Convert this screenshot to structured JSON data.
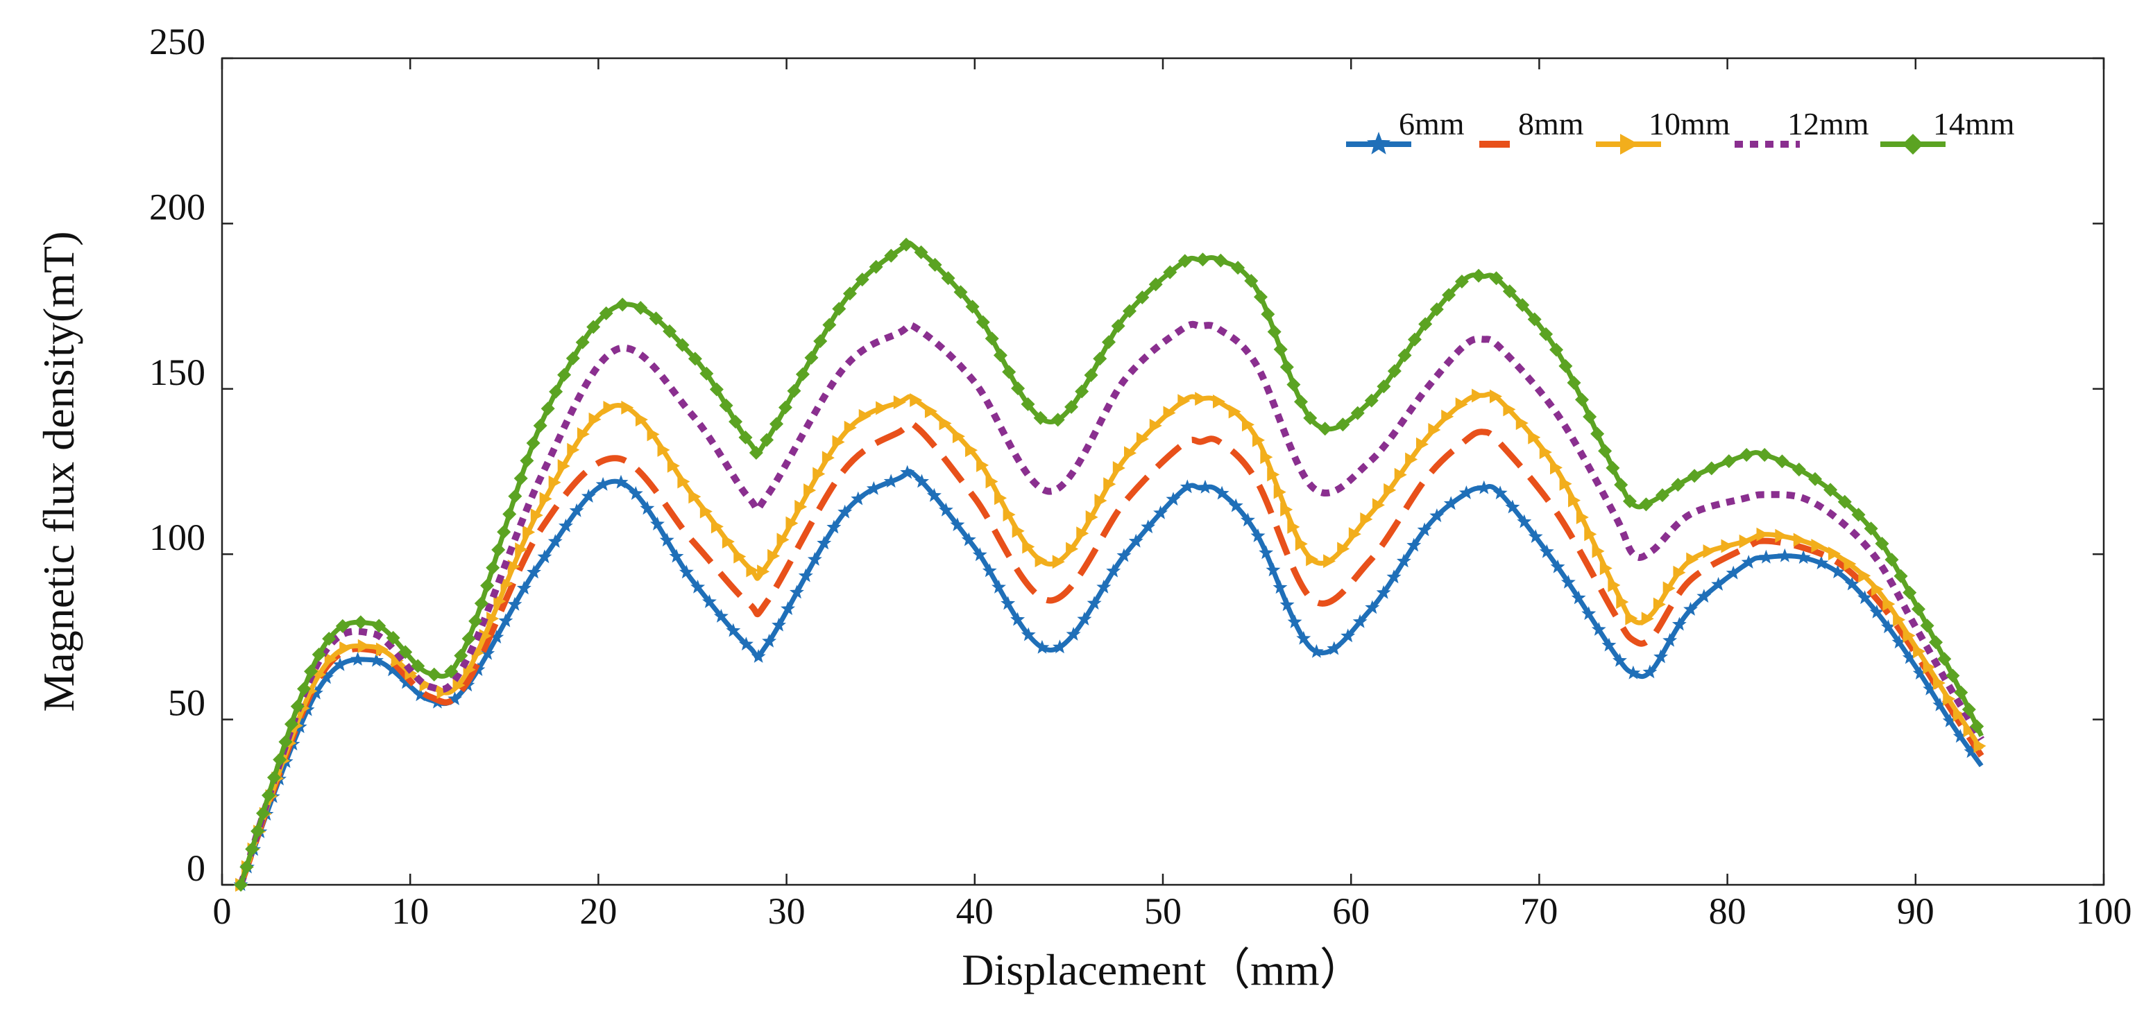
{
  "chart_data": {
    "type": "line",
    "title": "",
    "xlabel": "Displacement（mm）",
    "ylabel": "Magnetic flux density(mT)",
    "xlim": [
      0,
      100
    ],
    "ylim": [
      0,
      250
    ],
    "xticks": [
      0,
      10,
      20,
      30,
      40,
      50,
      60,
      70,
      80,
      90,
      100
    ],
    "yticks": [
      0,
      50,
      100,
      150,
      200,
      250
    ],
    "x_tick_labels": [
      "0",
      "10",
      "20",
      "30",
      "40",
      "50",
      "60",
      "70",
      "80",
      "90",
      "100"
    ],
    "y_tick_labels": [
      "0",
      "50",
      "100",
      "150",
      "200",
      "250"
    ],
    "grid": false,
    "legend_position": "top-right",
    "x": [
      1,
      5,
      8,
      11,
      13,
      17,
      21,
      25,
      28,
      29,
      33,
      36,
      37,
      40,
      44,
      48,
      51,
      52,
      53,
      55,
      58,
      61,
      64,
      66,
      67,
      68,
      71,
      74,
      75,
      76,
      78,
      81,
      82,
      84,
      86,
      88,
      90,
      92,
      93.5
    ],
    "series": [
      {
        "name": "6mm",
        "color": "#1F6FB8",
        "style": "solid",
        "marker": "star",
        "values": [
          0,
          58,
          68,
          56,
          60,
          98,
          122,
          92,
          72,
          73,
          112,
          123,
          123,
          102,
          71,
          100,
          119,
          120,
          119,
          106,
          71,
          83,
          108,
          118,
          120,
          118,
          96,
          70,
          64,
          65,
          83,
          97,
          99,
          99,
          94,
          82,
          66,
          48,
          36
        ]
      },
      {
        "name": "8mm",
        "color": "#E8501A",
        "style": "dashed",
        "marker": "none",
        "values": [
          0,
          61,
          71,
          57,
          61,
          108,
          129,
          104,
          85,
          86,
          125,
          137,
          138,
          117,
          86,
          116,
          133,
          134,
          134,
          122,
          86,
          98,
          123,
          134,
          137,
          133,
          112,
          82,
          74,
          75,
          92,
          102,
          104,
          102,
          97,
          86,
          70,
          52,
          39
        ]
      },
      {
        "name": "10mm",
        "color": "#F2AE1C",
        "style": "solid",
        "marker": "triangle-right",
        "values": [
          0,
          62,
          72,
          60,
          64,
          115,
          145,
          118,
          96,
          97,
          136,
          146,
          146,
          130,
          97,
          129,
          146,
          147,
          146,
          135,
          98,
          112,
          135,
          146,
          148,
          146,
          125,
          90,
          80,
          82,
          98,
          104,
          106,
          104,
          99,
          89,
          72,
          54,
          41
        ]
      },
      {
        "name": "12mm",
        "color": "#8A2F8F",
        "style": "dotted",
        "marker": "none",
        "values": [
          0,
          66,
          76,
          60,
          68,
          124,
          162,
          142,
          117,
          118,
          156,
          167,
          168,
          152,
          119,
          153,
          168,
          169,
          168,
          157,
          120,
          128,
          150,
          163,
          165,
          162,
          142,
          112,
          100,
          101,
          112,
          117,
          118,
          117,
          110,
          98,
          78,
          58,
          44
        ]
      },
      {
        "name": "14mm",
        "color": "#5BA322",
        "style": "solid",
        "marker": "diamond",
        "values": [
          0,
          68,
          79,
          64,
          73,
          140,
          175,
          160,
          134,
          135,
          176,
          192,
          192,
          174,
          140,
          172,
          188,
          189,
          189,
          180,
          140,
          146,
          170,
          183,
          184,
          182,
          161,
          125,
          115,
          116,
          123,
          130,
          130,
          125,
          117,
          105,
          85,
          63,
          45
        ]
      }
    ]
  }
}
